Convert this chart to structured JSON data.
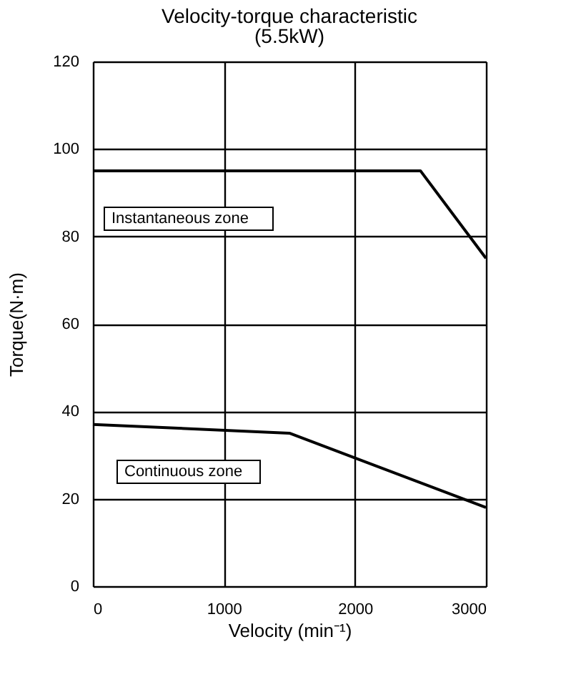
{
  "chart_data": {
    "type": "line",
    "title": "Velocity-torque characteristic",
    "subtitle": "(5.5kW)",
    "xlabel": "Velocity (min⁻¹)",
    "ylabel": "Torque(N·m)",
    "series": [
      {
        "color": "#000000",
        "x": [
          0,
          2500,
          3000
        ],
        "values": [
          95,
          95,
          75
        ]
      },
      {
        "color": "#000000",
        "x": [
          0,
          1500,
          3000
        ],
        "values": [
          37,
          35,
          18
        ]
      }
    ],
    "annotations": [
      "Instantaneous zone",
      "Continuous zone"
    ],
    "xlim": [
      0,
      3000
    ],
    "xticks": [
      0,
      1000,
      2000,
      3000
    ],
    "ylim": [
      0,
      120
    ],
    "yticks": [
      0,
      20,
      40,
      60,
      80,
      100,
      120
    ],
    "grid": true,
    "marker": "none",
    "line_style": "solid"
  }
}
